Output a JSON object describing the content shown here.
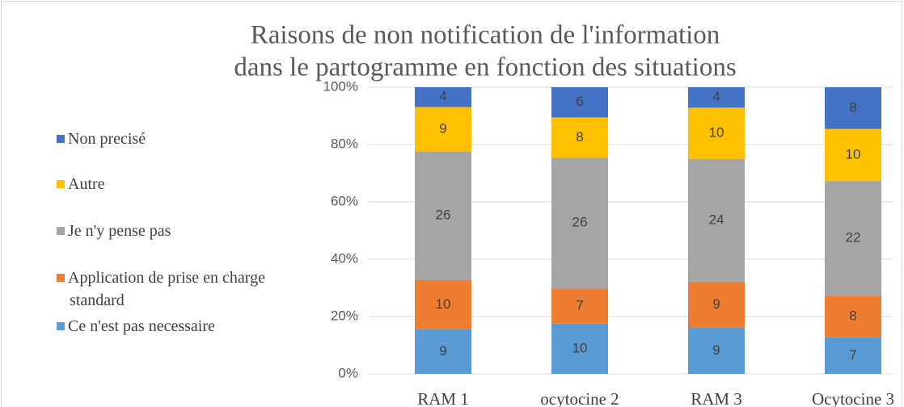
{
  "chart_data": {
    "type": "bar",
    "stacked": "percent",
    "title": [
      "Raisons de non notification de l'information",
      "dans le partogramme en fonction des situations"
    ],
    "categories": [
      "RAM 1",
      "ocytocine 2",
      "RAM 3",
      "Ocytocine 3"
    ],
    "series": [
      {
        "name": "Ce n'est pas necessaire",
        "color": "#5b9bd5",
        "values": [
          9,
          10,
          9,
          7
        ]
      },
      {
        "name": "Application de prise en charge standard",
        "color": "#ed7d31",
        "values": [
          10,
          7,
          9,
          8
        ]
      },
      {
        "name": "Je n'y pense pas",
        "color": "#a5a5a5",
        "values": [
          26,
          26,
          24,
          22
        ]
      },
      {
        "name": "Autre",
        "color": "#ffc000",
        "values": [
          9,
          8,
          10,
          10
        ]
      },
      {
        "name": "Non precisé",
        "color": "#4472c4",
        "values": [
          4,
          6,
          4,
          8
        ]
      }
    ],
    "ylim": [
      0,
      100
    ],
    "yticks": [
      {
        "value": 0,
        "label": "0%"
      },
      {
        "value": 20,
        "label": "20%"
      },
      {
        "value": 40,
        "label": "40%"
      },
      {
        "value": 60,
        "label": "60%"
      },
      {
        "value": 80,
        "label": "80%"
      },
      {
        "value": 100,
        "label": "100%"
      }
    ],
    "grid": true,
    "legend": "left"
  }
}
